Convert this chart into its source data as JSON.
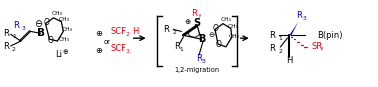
{
  "bg_color": "#ffffff",
  "fig_width": 3.78,
  "fig_height": 0.87,
  "dpi": 100,
  "red": "#e8000d",
  "blue": "#0000cc",
  "black": "#000000",
  "fs": 6.0,
  "fs_sm": 4.8,
  "fs_tiny": 4.2,
  "migration_label": "1,2-migration",
  "SCF2H": "SCF",
  "SCF3": "SCF",
  "or": "or"
}
